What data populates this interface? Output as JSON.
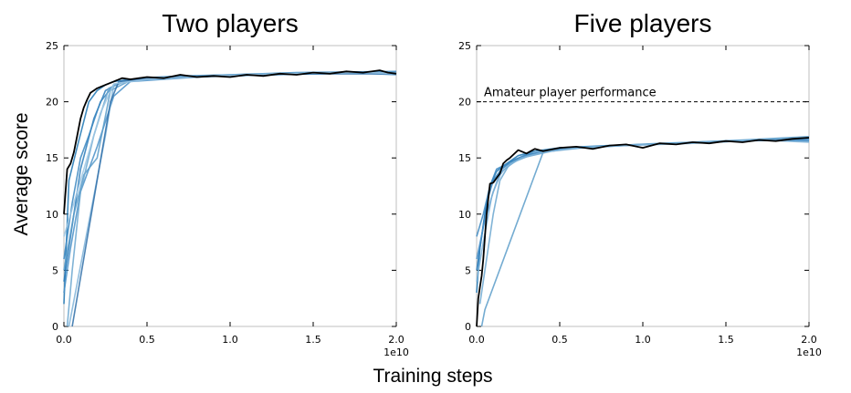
{
  "figure": {
    "ylabel": "Average score",
    "xlabel": "Training steps"
  },
  "colors": {
    "run_colors": [
      "#1f77b4",
      "#2b7bba",
      "#3a86c0",
      "#4a90c8",
      "#5b9cc9",
      "#6aa6cf",
      "#7fb3d8",
      "#2f6fa8",
      "#9cc5e3"
    ],
    "mean_color": "#000000",
    "spine_color": "#bfbfbf",
    "reference_line_color": "#000000"
  },
  "chart_data": [
    {
      "type": "line",
      "title": "Two players",
      "xlabel": "",
      "ylabel": "Average score",
      "xlim": [
        0,
        2.0
      ],
      "ylim": [
        0,
        25
      ],
      "x_ticks": [
        "0.0",
        "0.5",
        "1.0",
        "1.5",
        "2.0"
      ],
      "y_ticks": [
        "0",
        "5",
        "10",
        "15",
        "20",
        "25"
      ],
      "x_offset_label": "1e10",
      "grid": false,
      "series": [
        {
          "role": "run",
          "x": [
            0,
            0.03,
            0.08,
            0.15,
            0.2,
            0.25,
            0.3,
            0.4,
            0.6,
            1.0,
            1.5,
            2.0
          ],
          "y": [
            2,
            13,
            16,
            20,
            21,
            21.5,
            21.8,
            22,
            22.2,
            22.3,
            22.5,
            22.6
          ]
        },
        {
          "role": "run",
          "x": [
            0,
            0.05,
            0.1,
            0.18,
            0.25,
            0.35,
            0.5,
            0.8,
            1.2,
            1.6,
            2.0
          ],
          "y": [
            4,
            9,
            14,
            18.5,
            21,
            21.8,
            22,
            22.2,
            22.4,
            22.5,
            22.5
          ]
        },
        {
          "role": "run",
          "x": [
            0,
            0.05,
            0.1,
            0.15,
            0.22,
            0.3,
            0.45,
            0.7,
            1.0,
            1.4,
            2.0
          ],
          "y": [
            6,
            11,
            15,
            17,
            20,
            21.5,
            22.1,
            22.3,
            22.4,
            22.6,
            22.7
          ]
        },
        {
          "role": "run",
          "x": [
            0,
            0.04,
            0.1,
            0.2,
            0.3,
            0.4,
            0.6,
            0.9,
            1.3,
            1.7,
            2.0
          ],
          "y": [
            3,
            7,
            12,
            16,
            20.5,
            21.8,
            22,
            22.3,
            22.5,
            22.6,
            22.4
          ]
        },
        {
          "role": "run",
          "x": [
            0,
            0.06,
            0.12,
            0.2,
            0.28,
            0.4,
            0.6,
            1.0,
            1.5,
            2.0
          ],
          "y": [
            5,
            10,
            13.5,
            15,
            21,
            21.9,
            22.2,
            22.4,
            22.6,
            22.5
          ]
        },
        {
          "role": "run",
          "x": [
            0.02,
            0.05,
            0.1,
            0.18,
            0.27,
            0.35,
            0.5,
            0.8,
            1.2,
            1.6,
            2.0
          ],
          "y": [
            0,
            5,
            12,
            17,
            21.2,
            21.7,
            22.1,
            22.3,
            22.4,
            22.6,
            22.5
          ]
        },
        {
          "role": "run",
          "x": [
            0.03,
            0.25,
            0.3,
            0.4,
            0.6,
            1.0,
            1.5,
            2.0
          ],
          "y": [
            0,
            17,
            21.5,
            22,
            22.2,
            22.3,
            22.5,
            22.6
          ]
        },
        {
          "role": "run",
          "x": [
            0.05,
            0.28,
            0.33,
            0.45,
            0.7,
            1.1,
            1.6,
            2.0
          ],
          "y": [
            0,
            20,
            21.8,
            22,
            22.2,
            22.4,
            22.5,
            22.5
          ]
        },
        {
          "role": "run",
          "x": [
            0,
            0.08,
            0.15,
            0.22,
            0.3,
            0.5,
            0.9,
            1.3,
            1.8,
            2.0
          ],
          "y": [
            8,
            12,
            15.5,
            19,
            21.6,
            22,
            22.3,
            22.5,
            22.6,
            22.5
          ]
        },
        {
          "role": "mean",
          "x": [
            0,
            0.02,
            0.04,
            0.06,
            0.08,
            0.1,
            0.12,
            0.14,
            0.16,
            0.18,
            0.2,
            0.25,
            0.3,
            0.35,
            0.4,
            0.5,
            0.6,
            0.7,
            0.8,
            0.9,
            1.0,
            1.1,
            1.2,
            1.3,
            1.4,
            1.5,
            1.6,
            1.7,
            1.8,
            1.9,
            1.95,
            2.0
          ],
          "y": [
            10,
            14,
            14.5,
            15.5,
            17,
            18.5,
            19.5,
            20.2,
            20.8,
            21,
            21.2,
            21.5,
            21.8,
            22.1,
            22,
            22.2,
            22.1,
            22.4,
            22.2,
            22.3,
            22.2,
            22.4,
            22.3,
            22.5,
            22.4,
            22.6,
            22.5,
            22.7,
            22.6,
            22.8,
            22.6,
            22.5
          ]
        }
      ]
    },
    {
      "type": "line",
      "title": "Five players",
      "xlabel": "",
      "ylabel": "",
      "xlim": [
        0,
        2.0
      ],
      "ylim": [
        0,
        25
      ],
      "x_ticks": [
        "0.0",
        "0.5",
        "1.0",
        "1.5",
        "2.0"
      ],
      "y_ticks": [
        "0",
        "5",
        "10",
        "15",
        "20",
        "25"
      ],
      "x_offset_label": "1e10",
      "grid": false,
      "reference_line": {
        "y": 20,
        "label": "Amateur player performance",
        "style": "dashed"
      },
      "series": [
        {
          "role": "run",
          "x": [
            0,
            0.02,
            0.05,
            0.08,
            0.12,
            0.18,
            0.25,
            0.35,
            0.5,
            0.8,
            1.2,
            1.6,
            2.0
          ],
          "y": [
            3,
            7,
            10,
            12.5,
            13.8,
            14.5,
            15.2,
            15.6,
            15.9,
            16.1,
            16.3,
            16.5,
            16.8
          ]
        },
        {
          "role": "run",
          "x": [
            0,
            0.03,
            0.06,
            0.1,
            0.15,
            0.22,
            0.3,
            0.45,
            0.7,
            1.0,
            1.4,
            1.8,
            2.0
          ],
          "y": [
            5,
            8,
            11,
            13,
            14,
            14.8,
            15.3,
            15.7,
            16,
            16.2,
            16.4,
            16.6,
            16.7
          ]
        },
        {
          "role": "run",
          "x": [
            0,
            0.04,
            0.08,
            0.12,
            0.2,
            0.3,
            0.5,
            0.9,
            1.3,
            1.7,
            2.0
          ],
          "y": [
            8,
            10,
            12.5,
            14,
            14.6,
            15.2,
            15.8,
            16.1,
            16.4,
            16.6,
            16.5
          ]
        },
        {
          "role": "run",
          "x": [
            0,
            0.05,
            0.1,
            0.15,
            0.25,
            0.4,
            0.6,
            1.0,
            1.5,
            2.0
          ],
          "y": [
            6,
            9.5,
            12,
            13.8,
            14.9,
            15.5,
            15.9,
            16.2,
            16.5,
            16.6
          ]
        },
        {
          "role": "run",
          "x": [
            0.03,
            0.05,
            0.4,
            0.5,
            0.7,
            1.0,
            1.3,
            1.6,
            2.0
          ],
          "y": [
            0,
            1.5,
            15.5,
            15.9,
            16,
            16.2,
            16.4,
            16.6,
            16.9
          ]
        },
        {
          "role": "run",
          "x": [
            0.02,
            0.06,
            0.1,
            0.14,
            0.2,
            0.3,
            0.45,
            0.7,
            1.1,
            1.5,
            2.0
          ],
          "y": [
            2,
            6,
            10,
            13,
            14.5,
            15.1,
            15.6,
            16,
            16.3,
            16.5,
            16.8
          ]
        },
        {
          "role": "run",
          "x": [
            0,
            0.04,
            0.09,
            0.13,
            0.18,
            0.27,
            0.4,
            0.6,
            0.9,
            1.3,
            1.7,
            2.0
          ],
          "y": [
            4,
            7.5,
            11.5,
            13.3,
            14.2,
            15,
            15.5,
            15.9,
            16.1,
            16.3,
            16.6,
            16.4
          ]
        },
        {
          "role": "mean",
          "x": [
            0,
            0.01,
            0.02,
            0.03,
            0.04,
            0.05,
            0.06,
            0.08,
            0.1,
            0.12,
            0.14,
            0.16,
            0.18,
            0.2,
            0.25,
            0.3,
            0.35,
            0.4,
            0.5,
            0.6,
            0.7,
            0.8,
            0.9,
            1.0,
            1.1,
            1.2,
            1.3,
            1.4,
            1.5,
            1.6,
            1.7,
            1.8,
            1.9,
            2.0
          ],
          "y": [
            0,
            2.5,
            3.5,
            4.5,
            6,
            8,
            10,
            12.7,
            12.8,
            13.2,
            13.6,
            14.5,
            14.8,
            15,
            15.7,
            15.4,
            15.8,
            15.6,
            15.9,
            16,
            15.8,
            16.1,
            16.2,
            15.9,
            16.3,
            16.2,
            16.4,
            16.3,
            16.5,
            16.4,
            16.6,
            16.5,
            16.7,
            16.8
          ]
        }
      ]
    }
  ]
}
